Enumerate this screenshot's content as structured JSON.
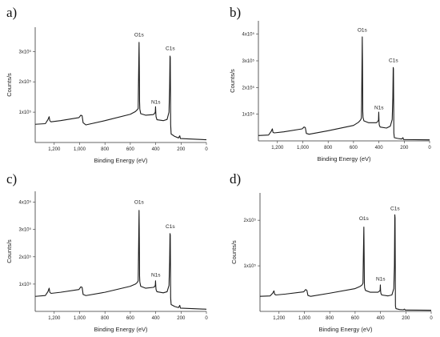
{
  "chart_data": [
    {
      "panel_label": "a)",
      "type": "line",
      "xlabel": "Binding Energy (eV)",
      "ylabel": "Counts/s",
      "x_reversed": true,
      "xlim": [
        1350,
        0
      ],
      "x_ticks": [
        1200,
        1000,
        800,
        600,
        400,
        200,
        0
      ],
      "x_tick_labels": [
        "1,200",
        "1,000",
        "800",
        "600",
        "400",
        "200",
        "0"
      ],
      "ylim": [
        0,
        380000
      ],
      "y_ticks": [
        100000,
        200000,
        300000
      ],
      "y_tick_labels": [
        "1x10⁵",
        "2x10⁵",
        "3x10⁵"
      ],
      "series": [
        {
          "x": [
            1350,
            1270,
            1250,
            1240,
            1235,
            1225,
            1150,
            1005,
            990,
            980,
            972,
            950,
            800,
            600,
            560,
            545,
            538,
            536,
            531,
            529,
            527,
            525,
            518,
            480,
            420,
            410,
            403,
            401,
            399,
            397,
            390,
            340,
            310,
            295,
            290,
            287,
            285,
            283,
            282,
            278,
            250,
            220,
            210,
            205,
            0
          ],
          "y": [
            60000,
            62000,
            75000,
            85000,
            72000,
            68000,
            72000,
            82000,
            90000,
            88000,
            65000,
            58000,
            72000,
            93000,
            102000,
            108000,
            112000,
            180000,
            330000,
            250000,
            135000,
            110000,
            95000,
            90000,
            92000,
            95000,
            100000,
            118000,
            98000,
            85000,
            75000,
            72000,
            76000,
            100000,
            180000,
            285000,
            280000,
            150000,
            60000,
            28000,
            20000,
            15000,
            22000,
            13000,
            9000
          ]
        }
      ],
      "annotations": [
        {
          "text": "O1s",
          "x": 531,
          "y": 350000
        },
        {
          "text": "N1s",
          "x": 399,
          "y": 128000
        },
        {
          "text": "C1s",
          "x": 285,
          "y": 305000
        }
      ]
    },
    {
      "panel_label": "b)",
      "type": "line",
      "xlabel": "Binding Energy (eV)",
      "ylabel": "Counts/s",
      "x_reversed": true,
      "xlim": [
        1350,
        0
      ],
      "x_ticks": [
        1200,
        1000,
        800,
        600,
        400,
        200,
        0
      ],
      "x_tick_labels": [
        "1,200",
        "1,000",
        "800",
        "600",
        "400",
        "200",
        "0"
      ],
      "ylim": [
        0,
        450000
      ],
      "y_ticks": [
        100000,
        200000,
        300000,
        400000
      ],
      "y_tick_labels": [
        "1x10⁵",
        "2x10⁵",
        "3x10⁵",
        "4x10⁵"
      ],
      "series": [
        {
          "x": [
            1350,
            1270,
            1250,
            1240,
            1235,
            1225,
            1150,
            1005,
            990,
            980,
            972,
            950,
            800,
            600,
            560,
            545,
            538,
            536,
            531,
            529,
            527,
            525,
            518,
            480,
            420,
            410,
            403,
            401,
            399,
            397,
            390,
            340,
            310,
            295,
            290,
            287,
            285,
            283,
            282,
            278,
            250,
            220,
            210,
            205,
            0
          ],
          "y": [
            20000,
            22000,
            35000,
            45000,
            32000,
            30000,
            34000,
            45000,
            52000,
            50000,
            28000,
            25000,
            38000,
            58000,
            70000,
            78000,
            85000,
            140000,
            390000,
            280000,
            110000,
            88000,
            75000,
            68000,
            68000,
            72000,
            78000,
            108000,
            76000,
            60000,
            52000,
            48000,
            55000,
            80000,
            160000,
            275000,
            270000,
            120000,
            30000,
            12000,
            9000,
            7000,
            12000,
            5000,
            4000
          ]
        }
      ],
      "annotations": [
        {
          "text": "O1s",
          "x": 531,
          "y": 410000
        },
        {
          "text": "N1s",
          "x": 399,
          "y": 118000
        },
        {
          "text": "C1s",
          "x": 285,
          "y": 295000
        }
      ]
    },
    {
      "panel_label": "c)",
      "type": "line",
      "xlabel": "Binding Energy (eV)",
      "ylabel": "Counts/s",
      "x_reversed": true,
      "xlim": [
        1350,
        0
      ],
      "x_ticks": [
        1200,
        1000,
        800,
        600,
        400,
        200,
        0
      ],
      "x_tick_labels": [
        "1,200",
        "1,000",
        "800",
        "600",
        "400",
        "200",
        "0"
      ],
      "ylim": [
        0,
        440000
      ],
      "y_ticks": [
        100000,
        200000,
        300000,
        400000
      ],
      "y_tick_labels": [
        "1x10⁵",
        "2x10⁵",
        "3x10⁵",
        "4x10⁵"
      ],
      "series": [
        {
          "x": [
            1350,
            1270,
            1250,
            1240,
            1235,
            1225,
            1150,
            1005,
            990,
            980,
            972,
            950,
            800,
            600,
            560,
            545,
            538,
            536,
            531,
            529,
            527,
            525,
            518,
            480,
            420,
            410,
            403,
            401,
            399,
            397,
            390,
            340,
            310,
            295,
            290,
            287,
            285,
            283,
            282,
            278,
            250,
            220,
            210,
            205,
            0
          ],
          "y": [
            55000,
            58000,
            72000,
            85000,
            70000,
            66000,
            70000,
            80000,
            90000,
            88000,
            62000,
            58000,
            70000,
            92000,
            100000,
            106000,
            112000,
            180000,
            370000,
            270000,
            130000,
            108000,
            92000,
            85000,
            88000,
            90000,
            95000,
            112000,
            92000,
            80000,
            72000,
            68000,
            72000,
            95000,
            180000,
            285000,
            280000,
            140000,
            50000,
            25000,
            18000,
            14000,
            22000,
            12000,
            8000
          ]
        }
      ],
      "annotations": [
        {
          "text": "O1s",
          "x": 531,
          "y": 395000
        },
        {
          "text": "N1s",
          "x": 399,
          "y": 128000
        },
        {
          "text": "C1s",
          "x": 285,
          "y": 305000
        }
      ]
    },
    {
      "panel_label": "d)",
      "type": "line",
      "xlabel": "Binding Energy (eV)",
      "ylabel": "Counts/s",
      "x_reversed": true,
      "xlim": [
        1350,
        0
      ],
      "x_ticks": [
        1200,
        1000,
        800,
        600,
        400,
        200,
        0
      ],
      "x_tick_labels": [
        "1,200",
        "1,000",
        "800",
        "600",
        "400",
        "200",
        "0"
      ],
      "ylim": [
        0,
        260000
      ],
      "y_ticks": [
        100000,
        200000
      ],
      "y_tick_labels": [
        "1x10⁵",
        "2x10⁵"
      ],
      "series": [
        {
          "x": [
            1350,
            1270,
            1250,
            1240,
            1235,
            1225,
            1150,
            1005,
            990,
            980,
            972,
            950,
            800,
            600,
            560,
            545,
            538,
            536,
            531,
            529,
            527,
            525,
            518,
            480,
            420,
            410,
            403,
            401,
            399,
            397,
            390,
            340,
            310,
            295,
            290,
            287,
            285,
            283,
            282,
            278,
            250,
            220,
            210,
            205,
            0
          ],
          "y": [
            33000,
            34000,
            40000,
            45000,
            38000,
            36000,
            38000,
            43000,
            48000,
            46000,
            35000,
            33000,
            40000,
            50000,
            55000,
            58000,
            62000,
            100000,
            185000,
            130000,
            62000,
            52000,
            46000,
            42000,
            42000,
            44000,
            46000,
            58000,
            45000,
            40000,
            36000,
            34000,
            36000,
            50000,
            100000,
            212000,
            205000,
            80000,
            12000,
            6000,
            4000,
            3500,
            5000,
            3000,
            2500
          ]
        }
      ],
      "annotations": [
        {
          "text": "O1s",
          "x": 531,
          "y": 200000
        },
        {
          "text": "N1s",
          "x": 399,
          "y": 68000
        },
        {
          "text": "C1s",
          "x": 285,
          "y": 222000
        }
      ]
    }
  ],
  "colors": {
    "line": "#1a1a1a",
    "axis": "#333333",
    "background": "#ffffff"
  }
}
